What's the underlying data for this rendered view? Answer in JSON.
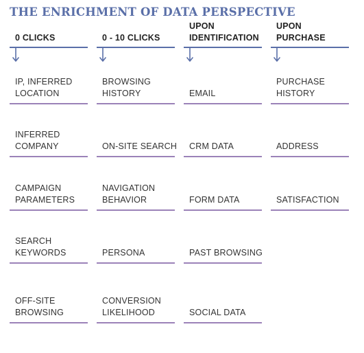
{
  "title": "THE ENRICHMENT OF DATA PERSPECTIVE",
  "columns": [
    {
      "header": "0 CLICKS",
      "items": [
        "IP, INFERRED LOCATION",
        "INFERRED COMPANY",
        "CAMPAIGN PARAMETERS",
        "SEARCH KEYWORDS",
        "OFF-SITE BROWSING"
      ]
    },
    {
      "header": "0 - 10 CLICKS",
      "items": [
        "BROWSING HISTORY",
        "ON-SITE SEARCH",
        "NAVIGATION BEHAVIOR",
        "PERSONA",
        "CONVERSION LIKELIHOOD"
      ]
    },
    {
      "header": "UPON IDENTIFICATION",
      "items": [
        "EMAIL",
        "CRM DATA",
        "FORM DATA",
        "PAST BROWSING",
        "SOCIAL DATA"
      ]
    },
    {
      "header": "UPON PURCHASE",
      "items": [
        "PURCHASE HISTORY",
        "ADDRESS",
        "SATISFACTION"
      ]
    }
  ],
  "colors": {
    "title": "#5a6fa8",
    "header_rule": "#5a6fa8",
    "item_rule": "#9b82b8"
  },
  "icons": {
    "column_arrow": "arrow-down-icon"
  }
}
